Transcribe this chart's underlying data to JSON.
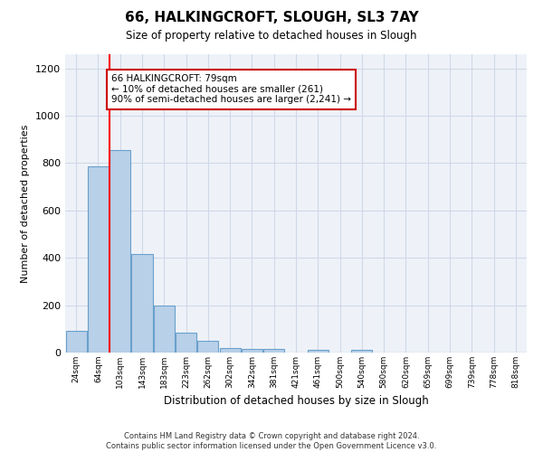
{
  "title_line1": "66, HALKINGCROFT, SLOUGH, SL3 7AY",
  "title_line2": "Size of property relative to detached houses in Slough",
  "xlabel": "Distribution of detached houses by size in Slough",
  "ylabel": "Number of detached properties",
  "bar_labels": [
    "24sqm",
    "64sqm",
    "103sqm",
    "143sqm",
    "183sqm",
    "223sqm",
    "262sqm",
    "302sqm",
    "342sqm",
    "381sqm",
    "421sqm",
    "461sqm",
    "500sqm",
    "540sqm",
    "580sqm",
    "620sqm",
    "659sqm",
    "699sqm",
    "739sqm",
    "778sqm",
    "818sqm"
  ],
  "bar_values": [
    90,
    785,
    855,
    415,
    200,
    85,
    50,
    20,
    15,
    15,
    0,
    12,
    0,
    12,
    0,
    0,
    0,
    0,
    0,
    0,
    0
  ],
  "bar_color": "#b8d0e8",
  "bar_edge_color": "#6aa0cc",
  "grid_color": "#d0d8e8",
  "background_color": "#eef2f8",
  "red_line_x": 1.5,
  "annotation_text": "66 HALKINGCROFT: 79sqm\n← 10% of detached houses are smaller (261)\n90% of semi-detached houses are larger (2,241) →",
  "annotation_box_color": "#ffffff",
  "annotation_box_edge": "#cc0000",
  "ylim": [
    0,
    1260
  ],
  "yticks": [
    0,
    200,
    400,
    600,
    800,
    1000,
    1200
  ],
  "footnote": "Contains HM Land Registry data © Crown copyright and database right 2024.\nContains public sector information licensed under the Open Government Licence v3.0."
}
